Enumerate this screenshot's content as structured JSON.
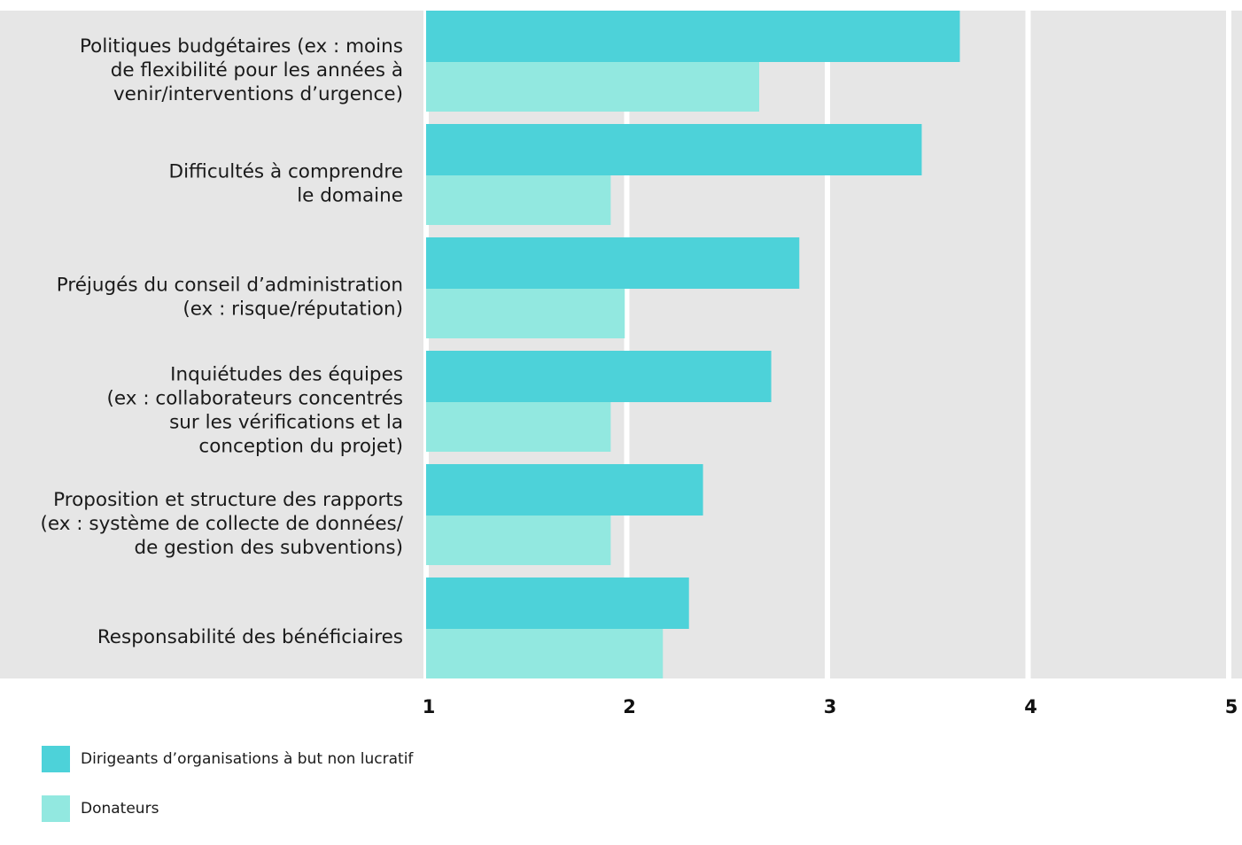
{
  "chart_data": {
    "type": "bar",
    "orientation": "horizontal",
    "categories": [
      [
        "Politiques budgétaires (ex : moins",
        "de flexibilité pour les années à",
        "venir/interventions d’urgence)"
      ],
      [
        "Difficultés à comprendre",
        "le domaine"
      ],
      [
        "Préjugés du conseil d’administration",
        "(ex : risque/réputation)"
      ],
      [
        "Inquiétudes des équipes",
        "(ex : collaborateurs concentrés",
        "sur les vérifications et la",
        "conception du projet)"
      ],
      [
        "Proposition et structure des rapports",
        "(ex : système de collecte de données/",
        "de gestion des subventions)"
      ],
      [
        "Responsabilité des bénéficiaires"
      ]
    ],
    "series": [
      {
        "name": "Dirigeants d’organisations à but non lucratif",
        "color": "#4dd2d9",
        "values": [
          3.66,
          3.47,
          2.86,
          2.72,
          2.38,
          2.31
        ]
      },
      {
        "name": "Donateurs",
        "color": "#92e8e0",
        "values": [
          2.66,
          1.92,
          1.99,
          1.92,
          1.92,
          2.18
        ]
      }
    ],
    "xlim": [
      1,
      5
    ],
    "xticks": [
      "1",
      "2",
      "3",
      "4",
      "5"
    ],
    "grid": true,
    "background": "#e6e6e6",
    "gridline_color": "#ffffff",
    "legend": "bottom-left"
  }
}
